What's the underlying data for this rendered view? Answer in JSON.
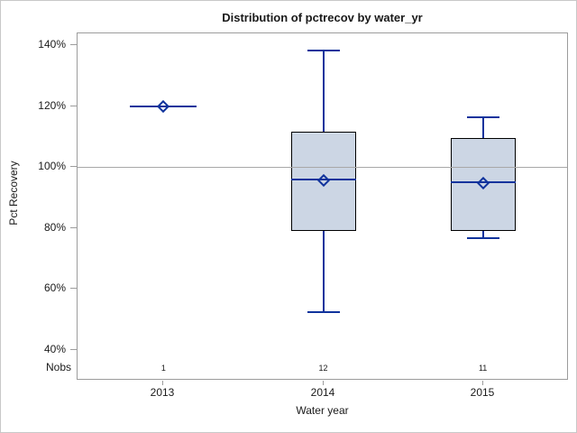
{
  "title": "Distribution of pctrecov by water_yr",
  "colors": {
    "background": "#ffffff",
    "outer_border": "#c8c8c8",
    "axis_gray": "#9c9c9c",
    "refline_gray": "#a8a8a8",
    "box_fill": "#ccd6e4",
    "box_border": "#000000",
    "line_blue": "#10339c",
    "text": "#1a1a1a"
  },
  "chart_data": {
    "type": "box",
    "title": "Distribution of pctrecov by water_yr",
    "xlabel": "Water year",
    "ylabel": "Pct Recovery",
    "nobs_label": "Nobs",
    "ylim": [
      30,
      144
    ],
    "yticks": [
      140,
      120,
      100,
      80,
      60,
      40
    ],
    "ytick_labels": [
      "140%",
      "120%",
      "100%",
      "80%",
      "60%",
      "40%"
    ],
    "refline": 100,
    "grid": "off",
    "legend": "none",
    "categories": [
      "2013",
      "2014",
      "2015"
    ],
    "groups": [
      {
        "category": "2013",
        "nobs": "1",
        "min": 119.8,
        "q1": 119.8,
        "median": 119.8,
        "mean": 119.8,
        "q3": 119.8,
        "max": 119.8
      },
      {
        "category": "2014",
        "nobs": "12",
        "min": 52.3,
        "q1": 79.0,
        "median": 95.9,
        "mean": 95.5,
        "q3": 111.6,
        "max": 138.2
      },
      {
        "category": "2015",
        "nobs": "11",
        "min": 76.6,
        "q1": 79.0,
        "median": 95.0,
        "mean": 94.7,
        "q3": 109.5,
        "max": 116.3
      }
    ]
  }
}
